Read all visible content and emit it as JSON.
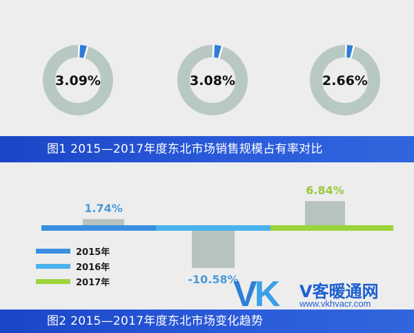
{
  "figure1": {
    "caption": "图1   2015—2017年度东北市场销售规模占有率对比"
  },
  "figure2": {
    "caption": "图2   2015—2017年度东北市场变化趋势"
  },
  "watermark": {
    "logo_v": "V",
    "logo_k": "K",
    "site_name": "V客暖通网",
    "url": "www.vkhvacr.com"
  },
  "colors": {
    "ring_bg": "#b8c8c3",
    "ring_fg": "#2e7dd6",
    "bar_fill": "#b6c3c0",
    "line_2015": "#3a8fe0",
    "line_2016": "#4ab3ec",
    "line_2017": "#9bd43a",
    "label_blue": "#4a9ad8",
    "label_green": "#98c93a",
    "caption_bg": "#2553d4"
  },
  "chart_data": [
    {
      "type": "pie",
      "title": "",
      "slices": [
        {
          "label": "3.09%",
          "value": 3.09
        },
        {
          "label": "2.66%",
          "value": 2.66
        },
        {
          "label": "3.08%",
          "value": 3.08
        }
      ]
    },
    {
      "type": "bar",
      "title": "",
      "categories": [
        "2015年",
        "2016年",
        "2017年"
      ],
      "values": [
        1.74,
        -10.58,
        6.84
      ],
      "labels": [
        "1.74%",
        "-10.58%",
        "6.84%"
      ],
      "ylim": [
        -13,
        8
      ],
      "grid": false,
      "legend": "bottom-left"
    }
  ]
}
